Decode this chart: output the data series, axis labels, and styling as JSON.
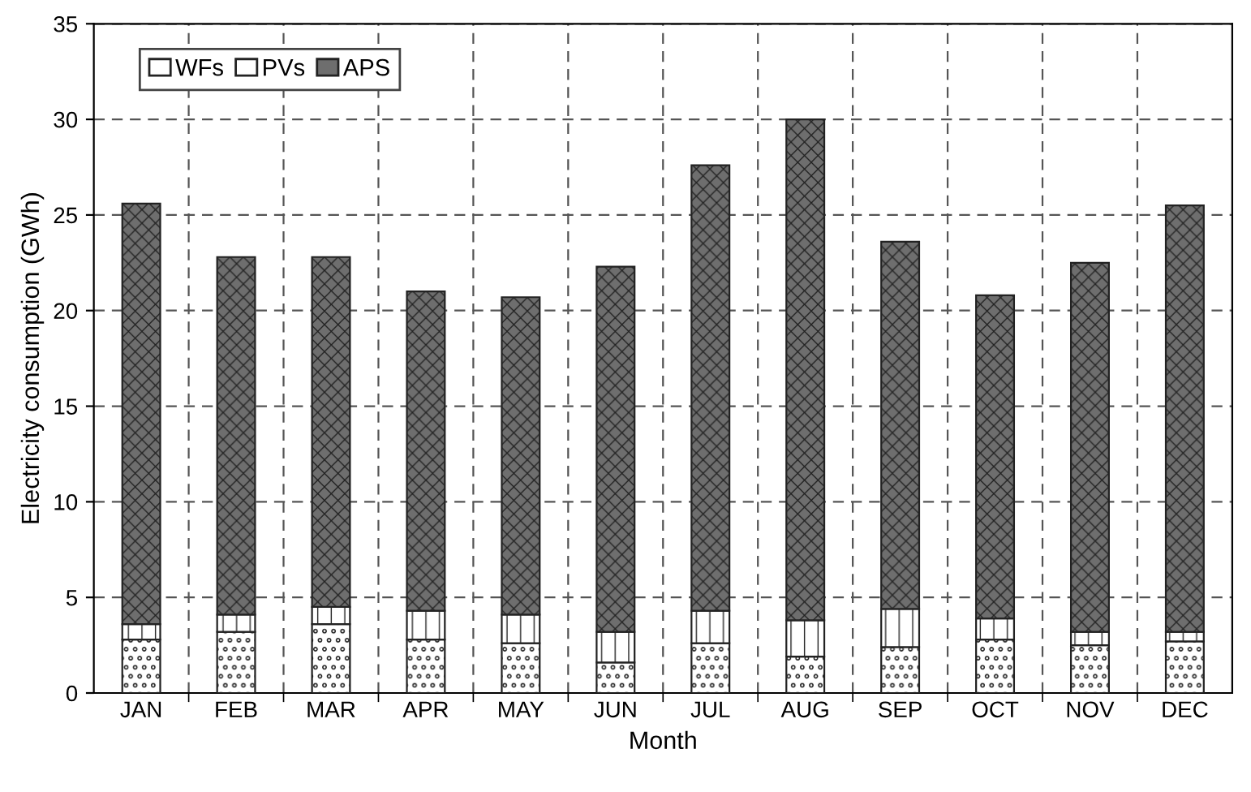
{
  "chart_data": {
    "type": "bar",
    "stacked": true,
    "xlabel": "Month",
    "ylabel": "Electricity consumption (GWh)",
    "categories": [
      "JAN",
      "FEB",
      "MAR",
      "APR",
      "MAY",
      "JUN",
      "JUL",
      "AUG",
      "SEP",
      "OCT",
      "NOV",
      "DEC"
    ],
    "series": [
      {
        "name": "WFs",
        "color": "#ffffff",
        "values": [
          2.8,
          3.2,
          3.6,
          2.8,
          2.6,
          1.6,
          2.6,
          1.9,
          2.4,
          2.8,
          2.5,
          2.7
        ]
      },
      {
        "name": "PVs",
        "color": "#ffffff",
        "values": [
          0.8,
          0.9,
          0.9,
          1.5,
          1.5,
          1.6,
          1.7,
          1.9,
          2.0,
          1.1,
          0.7,
          0.5
        ]
      },
      {
        "name": "APS",
        "color": "#6e6e6e",
        "values": [
          22.0,
          18.7,
          18.3,
          16.7,
          16.6,
          19.1,
          23.3,
          26.2,
          19.2,
          16.9,
          19.3,
          22.3
        ]
      }
    ],
    "ylim": [
      0,
      35
    ],
    "yticks": [
      0,
      5,
      10,
      15,
      20,
      25,
      30,
      35
    ],
    "grid": true,
    "legend": "top left"
  }
}
